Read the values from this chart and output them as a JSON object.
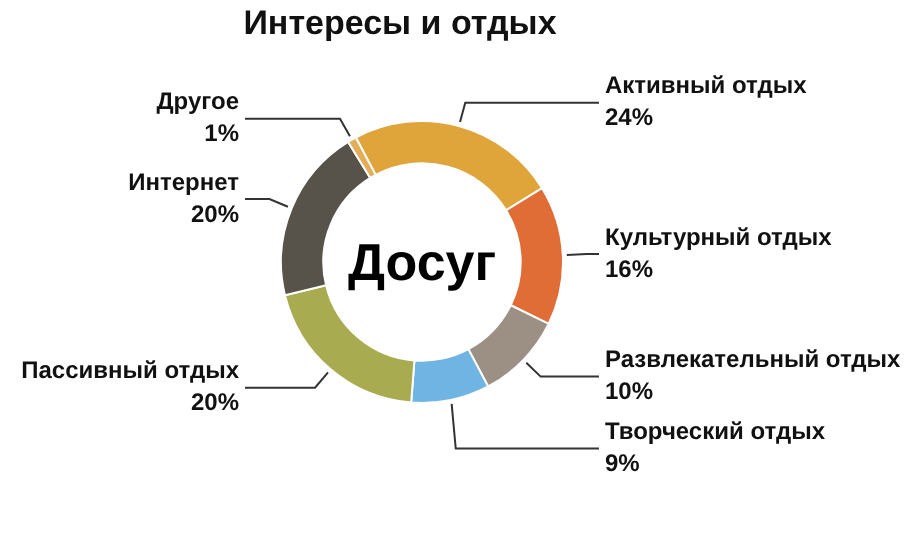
{
  "chart_data": {
    "type": "donut",
    "title": "Интересы и отдых",
    "categories": [
      "Активный отдых",
      "Культурный отдых",
      "Развлекательный отдых",
      "Творческий отдых",
      "Пассивный отдых",
      "Интернет",
      "Другое"
    ],
    "values": [
      24,
      16,
      10,
      9,
      20,
      20,
      1
    ],
    "value_labels": [
      "24%",
      "16%",
      "10%",
      "9%",
      "20%",
      "20%",
      "1%"
    ],
    "colors": [
      "#dfa53a",
      "#e06c36",
      "#9c9085",
      "#6fb4e2",
      "#a9ab50",
      "#57524a",
      "#e3ad5a"
    ],
    "annotations": [
      "Досуг"
    ],
    "legend": false
  }
}
